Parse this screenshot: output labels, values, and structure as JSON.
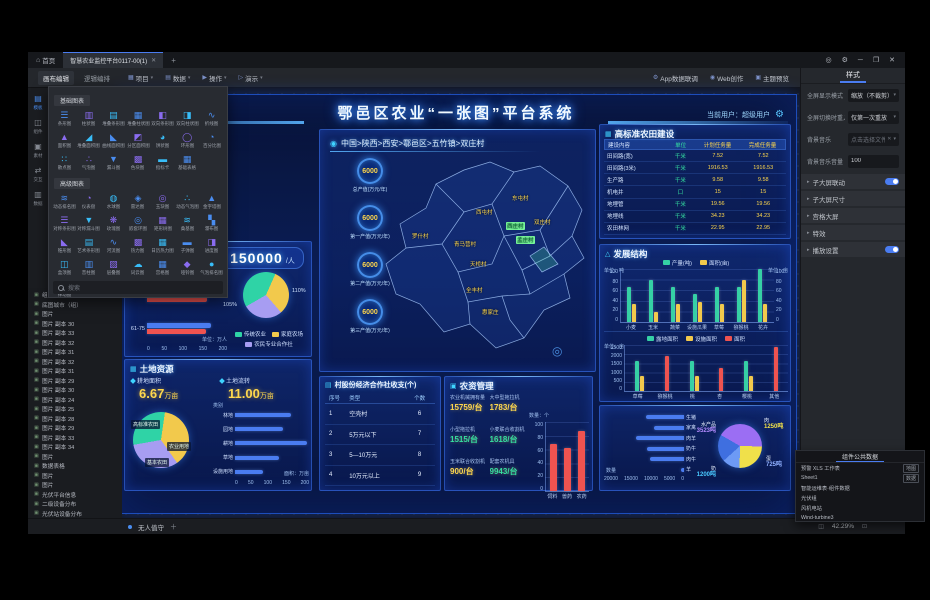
{
  "window": {
    "home_tab": "首页",
    "active_tab": "智慧农业监控平台0117-00(1)",
    "tab_close": "✕",
    "tab_add": "+",
    "controls": [
      "◎",
      "⚙",
      "─",
      "❐",
      "✕"
    ],
    "menu_left": [
      {
        "label": "画布编辑"
      },
      {
        "label": "逻辑编排"
      }
    ],
    "menu_dropdowns": [
      {
        "glyph": "▦",
        "label": "项目"
      },
      {
        "glyph": "▤",
        "label": "数据"
      },
      {
        "glyph": "▶",
        "label": "操作"
      },
      {
        "glyph": "▷",
        "label": "演示"
      }
    ],
    "menu_right": [
      {
        "glyph": "⚙",
        "label": "App数据联调"
      },
      {
        "glyph": "◉",
        "label": "Web创作"
      },
      {
        "glyph": "▣",
        "label": "主题预览"
      }
    ],
    "bottom": {
      "page_label": "无人值守",
      "add_label": "＋",
      "zoom": "42.29%",
      "icons": [
        "◫",
        "⊡"
      ]
    }
  },
  "rail": {
    "items": [
      {
        "glyph": "▤",
        "label": "模板"
      },
      {
        "glyph": "◫",
        "label": "组件"
      },
      {
        "glyph": "▣",
        "label": "素材"
      },
      {
        "glyph": "⇄",
        "label": "交互"
      },
      {
        "glyph": "▥",
        "label": "数据"
      }
    ]
  },
  "palette": {
    "search_placeholder": "搜索",
    "groups": [
      {
        "title": "基础图表",
        "items": [
          {
            "label": "条形图",
            "glyph": "☰",
            "color": "#4a8df0"
          },
          {
            "label": "柱状图",
            "glyph": "▥",
            "color": "#8a6cf0"
          },
          {
            "label": "堆叠条形图",
            "glyph": "▤",
            "color": "#38bdf8"
          },
          {
            "label": "堆叠柱状图",
            "glyph": "▦",
            "color": "#4a8df0"
          },
          {
            "label": "双向条形图",
            "glyph": "◧",
            "color": "#8a6cf0"
          },
          {
            "label": "双向柱状图",
            "glyph": "◨",
            "color": "#38bdf8"
          },
          {
            "label": "折线图",
            "glyph": "∿",
            "color": "#4a8df0"
          },
          {
            "label": "面积图",
            "glyph": "▲",
            "color": "#8a6cf0"
          },
          {
            "label": "堆叠面积图",
            "glyph": "◢",
            "color": "#38bdf8"
          },
          {
            "label": "曲线面积图",
            "glyph": "◣",
            "color": "#4a8df0"
          },
          {
            "label": "分区面积图",
            "glyph": "◩",
            "color": "#8a6cf0"
          },
          {
            "label": "饼状图",
            "glyph": "◕",
            "color": "#38bdf8"
          },
          {
            "label": "环形图",
            "glyph": "◯",
            "color": "#8a6cf0"
          },
          {
            "label": "百分比图",
            "glyph": "◔",
            "color": "#4a8df0"
          },
          {
            "label": "散点图",
            "glyph": "∷",
            "color": "#38bdf8"
          },
          {
            "label": "气泡图",
            "glyph": "∴",
            "color": "#8a6cf0"
          },
          {
            "label": "漏斗图",
            "glyph": "▼",
            "color": "#4a8df0"
          },
          {
            "label": "色块图",
            "glyph": "▩",
            "color": "#8a6cf0"
          },
          {
            "label": "指标卡",
            "glyph": "▬",
            "color": "#38bdf8"
          },
          {
            "label": "基础表格",
            "glyph": "▦",
            "color": "#4a8df0"
          }
        ]
      },
      {
        "title": "高级图表",
        "items": [
          {
            "label": "动态排名图",
            "glyph": "≋",
            "color": "#4a8df0"
          },
          {
            "label": "仪表盘",
            "glyph": "◔",
            "color": "#8a6cf0"
          },
          {
            "label": "水球图",
            "glyph": "◍",
            "color": "#38bdf8"
          },
          {
            "label": "雷达图",
            "glyph": "◈",
            "color": "#4a8df0"
          },
          {
            "label": "玉玦图",
            "glyph": "◎",
            "color": "#8a6cf0"
          },
          {
            "label": "动态气泡图",
            "glyph": "∴",
            "color": "#38bdf8"
          },
          {
            "label": "金字塔图",
            "glyph": "▲",
            "color": "#4a8df0"
          },
          {
            "label": "对称条形图",
            "glyph": "☰",
            "color": "#8a6cf0"
          },
          {
            "label": "对称漏斗图",
            "glyph": "▼",
            "color": "#38bdf8"
          },
          {
            "label": "玫瑰图",
            "glyph": "❋",
            "color": "#8a6cf0"
          },
          {
            "label": "嵌套环图",
            "glyph": "◎",
            "color": "#4a8df0"
          },
          {
            "label": "矩形树图",
            "glyph": "▦",
            "color": "#8a6cf0"
          },
          {
            "label": "桑基图",
            "glyph": "≋",
            "color": "#38bdf8"
          },
          {
            "label": "瀑布图",
            "glyph": "▚",
            "color": "#4a8df0"
          },
          {
            "label": "锥形图",
            "glyph": "◣",
            "color": "#8a6cf0"
          },
          {
            "label": "艺术条形图",
            "glyph": "▤",
            "color": "#38bdf8"
          },
          {
            "label": "河流图",
            "glyph": "∿",
            "color": "#4a8df0"
          },
          {
            "label": "热力图",
            "glyph": "▩",
            "color": "#8a6cf0"
          },
          {
            "label": "日历热力图",
            "glyph": "▦",
            "color": "#38bdf8"
          },
          {
            "label": "子弹图",
            "glyph": "▬",
            "color": "#4a8df0"
          },
          {
            "label": "进度图",
            "glyph": "◨",
            "color": "#8a6cf0"
          },
          {
            "label": "盒须图",
            "glyph": "◫",
            "color": "#38bdf8"
          },
          {
            "label": "音柱图",
            "glyph": "▥",
            "color": "#4a8df0"
          },
          {
            "label": "层叠图",
            "glyph": "▧",
            "color": "#8a6cf0"
          },
          {
            "label": "词云图",
            "glyph": "☁",
            "color": "#38bdf8"
          },
          {
            "label": "宫格图",
            "glyph": "▦",
            "color": "#4a8df0"
          },
          {
            "label": "哑铃图",
            "glyph": "◆",
            "color": "#8a6cf0"
          },
          {
            "label": "气泡排名图",
            "glyph": "●",
            "color": "#38bdf8"
          },
          {
            "label": "律动图",
            "glyph": "▥",
            "color": "#4a8df0"
          }
        ]
      }
    ]
  },
  "layer_tree": {
    "items": [
      "组合+ 副本 24",
      "底图城市（组）",
      "图片",
      "图片 副本 30",
      "图片 副本 33",
      "图片 副本 32",
      "图片 副本 31",
      "图片 副本 32",
      "图片 副本 31",
      "图片 副本 29",
      "图片 副本 30",
      "图片 副本 24",
      "图片 副本 25",
      "图片 副本 28",
      "图片 副本 29",
      "图片 副本 33",
      "图片 副本 34",
      "图片",
      "数据表格",
      "图片",
      "图片",
      "光伏平台信息",
      "二级设备分布",
      "光伏站设备分布"
    ]
  },
  "dashboard": {
    "title": "鄂邑区农业“一张图”平台系统",
    "user_label": "当前用户：超级用户",
    "map": {
      "breadcrumb": "中国>陕西>西安>鄠邑区>五竹镇>双庄村",
      "badges": [
        {
          "value": "6000",
          "label": "总产值(万元/年)"
        },
        {
          "value": "6000",
          "label": "第一产值(万元/年)"
        },
        {
          "value": "6000",
          "label": "第二产值(万元/年)"
        },
        {
          "value": "6000",
          "label": "第三产值(万元/年)"
        }
      ],
      "villages": [
        {
          "name": "东屯村"
        },
        {
          "name": "西屯村"
        },
        {
          "name": "双庄村"
        },
        {
          "name": "西庄村"
        },
        {
          "name": "孟庄村"
        },
        {
          "name": "罗什村"
        },
        {
          "name": "青马营村"
        },
        {
          "name": "天桥村"
        },
        {
          "name": "全丰村"
        },
        {
          "name": "惠家庄"
        }
      ]
    },
    "population": {
      "label": "粮农人口",
      "value": "150000",
      "unit": "/人",
      "pie": {
        "type": "pie",
        "rotate": -120,
        "slices": [
          {
            "label": "传统农业",
            "value": 40,
            "color": "#2fd3a6"
          },
          {
            "label": "家庭农场",
            "value": 32,
            "color": "#f2c94c"
          },
          {
            "label": "农民专业合作社",
            "value": 28,
            "color": "#a79df2"
          }
        ]
      },
      "pie_callouts": [
        "110%",
        "105%"
      ],
      "age_chart": {
        "type": "hbar",
        "categories": [
          "51-60",
          "61-75"
        ],
        "series": [
          {
            "color": "#4a7cf0",
            "values": [
              165,
              160
            ]
          },
          {
            "color": "#ef5350",
            "values": [
              150,
              148
            ]
          }
        ],
        "xmax": 200,
        "xticks": [
          "0",
          "50",
          "100",
          "150",
          "200"
        ],
        "unit": "单位：万人"
      }
    },
    "land": {
      "title": "土地资源",
      "stats": [
        {
          "label": "耕地面积",
          "value": "6.67",
          "unit": "万亩"
        },
        {
          "label": "土地流转",
          "value": "11.00",
          "unit": "万亩"
        }
      ],
      "pie": {
        "type": "pie",
        "rotate": -100,
        "slices": [
          {
            "label": "高标准农田",
            "value": 30,
            "color": "#2fd3a6"
          },
          {
            "label": "农业用地",
            "value": 38,
            "color": "#f2c94c"
          },
          {
            "label": "基本农田",
            "value": 32,
            "color": "#a79df2"
          }
        ]
      },
      "chart_header": "类别",
      "chart": {
        "type": "hbar",
        "categories": [
          "林地",
          "园地",
          "耕地",
          "草地",
          "设施用地"
        ],
        "series": [
          {
            "color": "#4a7cf0",
            "values": [
              150,
              130,
              195,
              120,
              75
            ]
          }
        ],
        "xmax": 200,
        "xticks": [
          "0",
          "50",
          "100",
          "150",
          "200"
        ],
        "unit": "面积：万亩"
      }
    },
    "coop": {
      "title": "村股份经济合作社收支(个)",
      "columns": [
        "序号",
        "类型",
        "个数"
      ],
      "rows": [
        {
          "no": "1",
          "type": "空壳村",
          "count": "6"
        },
        {
          "no": "2",
          "type": "5万元以下",
          "count": "7"
        },
        {
          "no": "3",
          "type": "5—10万元",
          "count": "8"
        },
        {
          "no": "4",
          "type": "10万元以上",
          "count": "9"
        }
      ]
    },
    "agri": {
      "title": "农资管理",
      "stats": [
        {
          "label": "农业机械拥有量",
          "value": "15759/台",
          "color": "#ffd84d"
        },
        {
          "label": "大中型拖拉机",
          "value": "1783/台",
          "color": "#ffd84d"
        },
        {
          "label": "小型拖拉机",
          "value": "1515/台",
          "color": "#35e0a0"
        },
        {
          "label": "小麦联合收割机",
          "value": "1618/台",
          "color": "#35e0a0"
        },
        {
          "label": "玉米联合收割机",
          "value": "900/台",
          "color": "#ffd84d"
        },
        {
          "label": "配套农机具",
          "value": "9943/台",
          "color": "#35e0a0"
        }
      ],
      "chart": {
        "type": "vbar",
        "unit": "数量：个",
        "ymax": 100,
        "yticks": [
          "100",
          "80",
          "60",
          "40",
          "20",
          "0"
        ],
        "categories": [
          "饲料",
          "兽药",
          "农药"
        ],
        "series": [
          {
            "color": "#ef5350",
            "values": [
              68,
              62,
              87
            ]
          }
        ]
      }
    },
    "farmland": {
      "title": "高标准农田建设",
      "columns": [
        "建设内容",
        "单位",
        "计划任务量",
        "完成任务量"
      ],
      "rows": [
        {
          "name": "田间路(宽)",
          "unit": "千米",
          "plan": "7.52",
          "done": "7.52"
        },
        {
          "name": "田间路(3米)",
          "unit": "千米",
          "plan": "1916.53",
          "done": "1916.53"
        },
        {
          "name": "生产路",
          "unit": "千米",
          "plan": "9.58",
          "done": "9.58"
        },
        {
          "name": "机电井",
          "unit": "口",
          "plan": "15",
          "done": "15"
        },
        {
          "name": "地埋管",
          "unit": "千米",
          "plan": "19.56",
          "done": "19.56"
        },
        {
          "name": "地埋线",
          "unit": "千米",
          "plan": "34.23",
          "done": "34.23"
        },
        {
          "name": "农田林网",
          "unit": "千米",
          "plan": "22.95",
          "done": "22.95"
        }
      ]
    },
    "develop": {
      "title": "发展结构",
      "chart1": {
        "type": "vbar",
        "ymax": 105,
        "yticks": [
          "100",
          "80",
          "60",
          "40",
          "20",
          "0"
        ],
        "yticksRight": [
          "100",
          "80",
          "60",
          "40",
          "20",
          "0"
        ],
        "unitLeft": "单位：吨",
        "unitRight": "单位：亩",
        "legend": [
          {
            "label": "产量(吨)",
            "color": "#35d0a5"
          },
          {
            "label": "面积(亩)",
            "color": "#f2c94c"
          }
        ],
        "categories": [
          "小麦",
          "玉米",
          "蔬菜",
          "设施瓜果",
          "草莓",
          "猕猴桃",
          "花卉"
        ],
        "series": [
          {
            "color": "#35d0a5",
            "values": [
              70,
              83,
              70,
              55,
              70,
              70,
              105
            ]
          },
          {
            "color": "#f2c94c",
            "values": [
              35,
              20,
              35,
              40,
              35,
              83,
              35
            ]
          }
        ]
      },
      "chart2": {
        "type": "vbar",
        "ymax": 2700,
        "yticks": [
          "2500",
          "2000",
          "1500",
          "1000",
          "500",
          "0"
        ],
        "unitLeft": "单位：亩",
        "legend": [
          {
            "label": "露地面积",
            "color": "#35d0a5"
          },
          {
            "label": "设施面积",
            "color": "#f2c94c"
          },
          {
            "label": "面积",
            "color": "#ef5350"
          }
        ],
        "categories": [
          "草莓",
          "猕猴桃",
          "桃",
          "杏",
          "樱桃",
          "其他"
        ],
        "series": [
          {
            "color": "#35d0a5",
            "values": [
              1750,
              0,
              1750,
              0,
              1750,
              0
            ]
          },
          {
            "color": "#f2c94c",
            "values": [
              875,
              0,
              875,
              0,
              875,
              0
            ]
          },
          {
            "color": "#ef5350",
            "values": [
              0,
              2050,
              0,
              1375,
              0,
              2600
            ]
          }
        ]
      }
    },
    "livestock": {
      "bars": {
        "type": "hbar",
        "reverse": true,
        "categories": [
          "生猪",
          "家禽",
          "肉羊",
          "奶牛",
          "肉牛",
          "羊"
        ],
        "series": [
          {
            "color": "#4a7cf0",
            "values": [
              9500,
              7500,
              12000,
              9300,
              8600,
              700
            ]
          }
        ],
        "xmax": 20000,
        "xticks": [
          "20000",
          "15000",
          "10000",
          "5000",
          "0"
        ],
        "unit": "数量"
      },
      "pie": {
        "type": "pie",
        "rotate": -60,
        "slices": [
          {
            "label": "水产品",
            "value": 42,
            "color": "#9b6ef3"
          },
          {
            "label": "肉",
            "value": 25,
            "color": "#f0e04a"
          },
          {
            "label": "蛋",
            "value": 13,
            "color": "#6d9af5"
          },
          {
            "label": "奶",
            "value": 20,
            "color": "#3f6fe0"
          }
        ]
      },
      "callouts": [
        {
          "label": "水产品",
          "value": "3523吨",
          "color": "#b48cff"
        },
        {
          "label": "肉",
          "value": "1250吨",
          "color": "#f0e04a"
        },
        {
          "label": "蛋",
          "value": "725吨",
          "color": "#8fb0ff"
        },
        {
          "label": "奶",
          "value": "1200吨",
          "color": "#49c8ff"
        }
      ]
    }
  },
  "right_panel": {
    "tab": "样式",
    "fields": [
      {
        "label": "全屏显示模式",
        "value": "缩放（不裁剪）"
      },
      {
        "label": "全屏切换时重入场...",
        "value": "仅第一次重放"
      },
      {
        "label": "背景音乐",
        "value": "点击选择文件"
      },
      {
        "label": "背景音乐音量",
        "value": "100"
      }
    ],
    "sections": [
      {
        "label": "子大屏联动"
      },
      {
        "label": "子大屏尺寸"
      },
      {
        "label": "宫格大屏"
      },
      {
        "label": "特效"
      },
      {
        "label": "播放设置"
      }
    ]
  },
  "data_panel": {
    "tab": "组件公共数据",
    "rows": [
      {
        "label": "预警 XLS 工作表",
        "tag": "地图"
      },
      {
        "label": "Sheet1",
        "tag": "数据"
      },
      {
        "label": "智能运维表·组件数据",
        "tag": ""
      },
      {
        "label": "光伏组",
        "tag": ""
      },
      {
        "label": "风机电站",
        "tag": ""
      },
      {
        "label": "Wind-turbine3",
        "tag": ""
      }
    ]
  }
}
